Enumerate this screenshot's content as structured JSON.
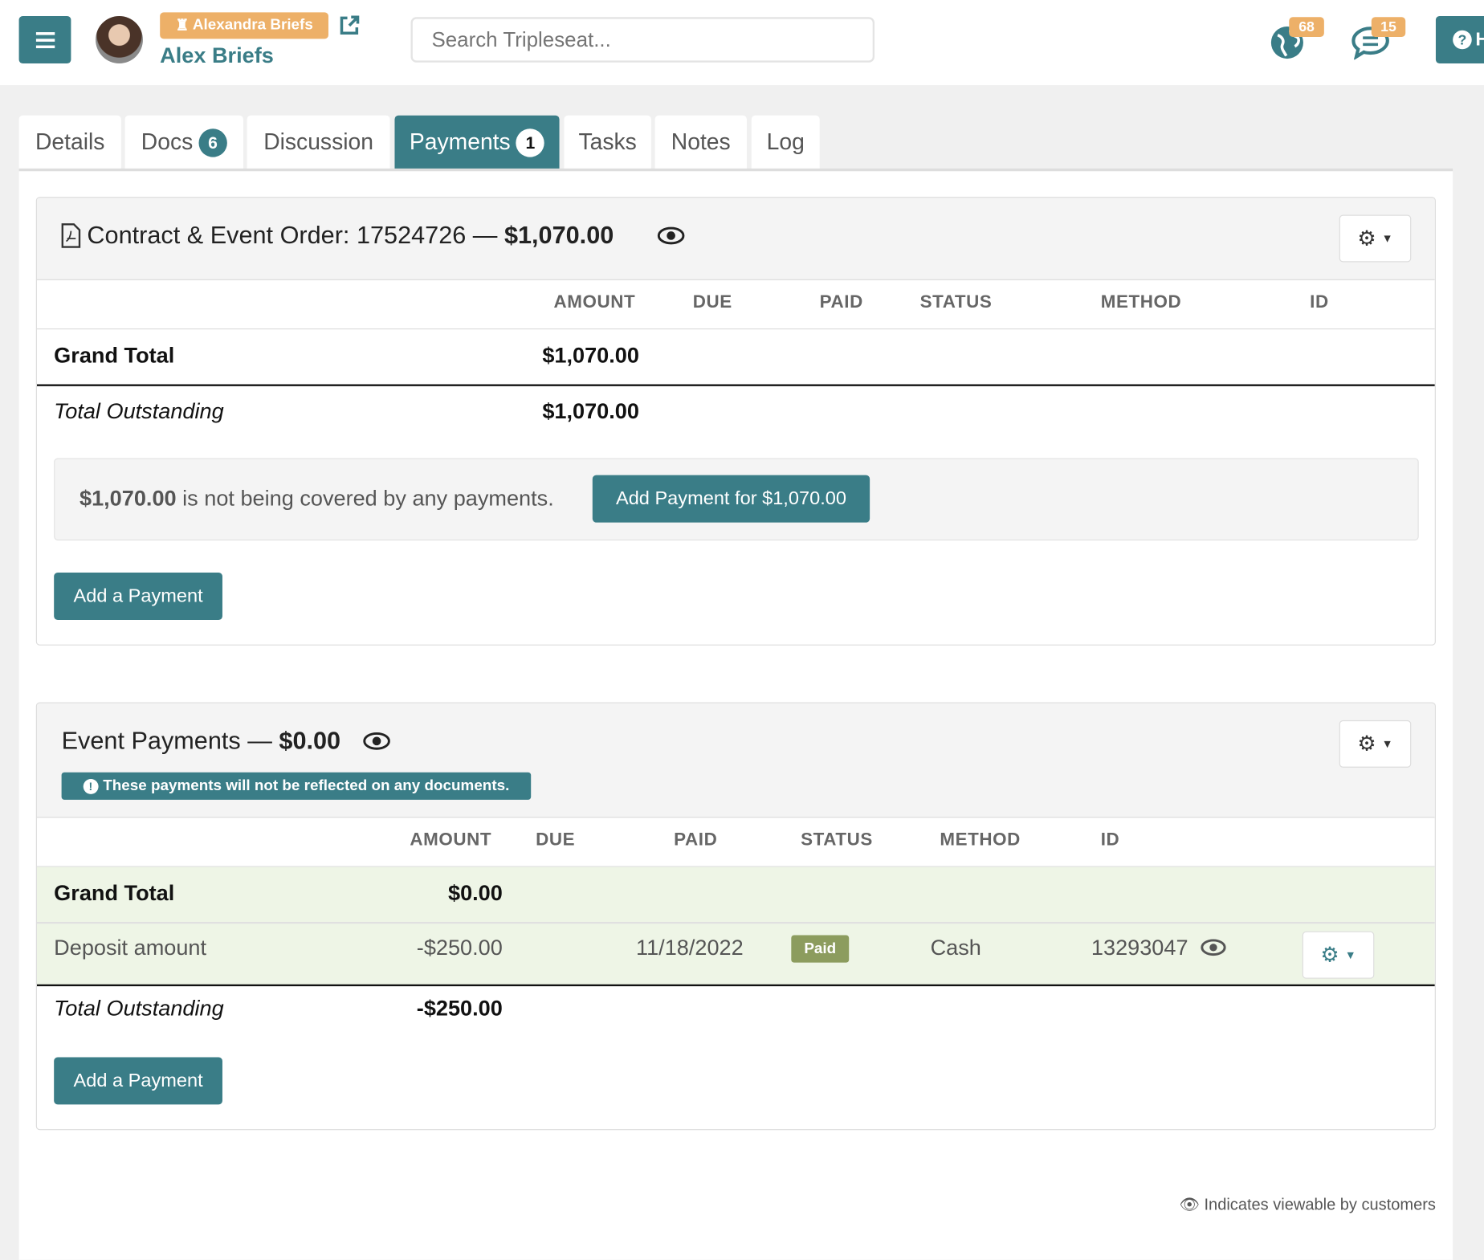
{
  "header": {
    "menu_icon": "hamburger-icon",
    "impersonation_badge": "Alexandra Briefs",
    "user_name": "Alex Briefs",
    "search_placeholder": "Search Tripleseat...",
    "notifications_count": "68",
    "messages_count": "15",
    "help_label": "H",
    "accent_color": "#3a7d87",
    "badge_color": "#edb068"
  },
  "tabs": [
    {
      "label": "Details"
    },
    {
      "label": "Docs",
      "count": "6"
    },
    {
      "label": "Discussion"
    },
    {
      "label": "Payments",
      "count": "1",
      "active": true
    },
    {
      "label": "Tasks"
    },
    {
      "label": "Notes"
    },
    {
      "label": "Log"
    }
  ],
  "contract": {
    "title": "Contract & Event Order: 17524726 — ",
    "title_amount": "$1,070.00",
    "columns": [
      "AMOUNT",
      "DUE",
      "PAID",
      "STATUS",
      "METHOD",
      "ID"
    ],
    "grand_total_label": "Grand Total",
    "grand_total": "$1,070.00",
    "outstanding_label": "Total Outstanding",
    "outstanding": "$1,070.00",
    "notice_amount": "$1,070.00",
    "notice_text": " is not being covered by any payments.",
    "notice_button": "Add Payment for $1,070.00",
    "add_button": "Add a Payment"
  },
  "event_payments": {
    "title": "Event Payments — ",
    "title_amount": "$0.00",
    "info": "These payments will not be reflected on any documents.",
    "columns": [
      "AMOUNT",
      "DUE",
      "PAID",
      "STATUS",
      "METHOD",
      "ID"
    ],
    "grand_total_label": "Grand Total",
    "grand_total": "$0.00",
    "payment": {
      "label": "Deposit amount",
      "amount": "-$250.00",
      "paid": "11/18/2022",
      "status": "Paid",
      "method": "Cash",
      "id": "13293047"
    },
    "outstanding_label": "Total Outstanding",
    "outstanding": "-$250.00",
    "add_button": "Add a Payment"
  },
  "footer_note": "Indicates viewable by customers"
}
